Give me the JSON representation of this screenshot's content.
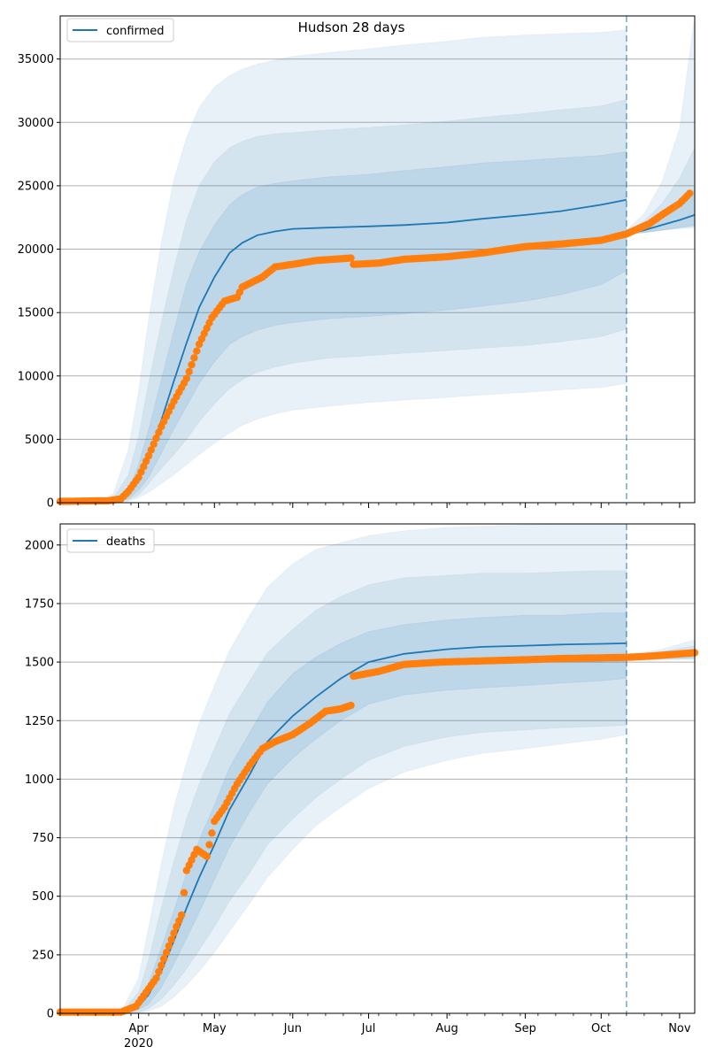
{
  "figure_title": "Hudson 28 days",
  "chart_data": [
    {
      "type": "line",
      "title": "Hudson 28 days",
      "legend": {
        "label": "confirmed",
        "placement": "top-left"
      },
      "grid": true,
      "ylim": [
        0,
        38400
      ],
      "yticks": [
        0,
        5000,
        10000,
        15000,
        20000,
        25000,
        30000,
        35000
      ],
      "xlim": [
        "2020-03-01",
        "2020-11-07"
      ],
      "vline_date": "2020-10-11",
      "forecast": {
        "x": [
          "2020-03-01",
          "2020-03-15",
          "2020-03-22",
          "2020-03-28",
          "2020-04-01",
          "2020-04-05",
          "2020-04-10",
          "2020-04-15",
          "2020-04-20",
          "2020-04-25",
          "2020-05-01",
          "2020-05-07",
          "2020-05-12",
          "2020-05-18",
          "2020-05-25",
          "2020-06-01",
          "2020-06-15",
          "2020-07-01",
          "2020-07-15",
          "2020-08-01",
          "2020-08-15",
          "2020-09-01",
          "2020-09-15",
          "2020-10-01",
          "2020-10-11"
        ],
        "median": [
          0,
          0,
          100,
          600,
          1800,
          3500,
          6500,
          9600,
          12600,
          15400,
          17800,
          19700,
          20500,
          21100,
          21400,
          21600,
          21700,
          21800,
          21900,
          22100,
          22400,
          22700,
          23000,
          23500,
          23900
        ],
        "band_inner": [
          [
            0,
            0
          ],
          [
            0,
            0
          ],
          [
            50,
            180
          ],
          [
            300,
            1000
          ],
          [
            1000,
            3000
          ],
          [
            2000,
            5800
          ],
          [
            3900,
            9700
          ],
          [
            5800,
            13600
          ],
          [
            7600,
            17300
          ],
          [
            9400,
            19800
          ],
          [
            11100,
            21900
          ],
          [
            12500,
            23500
          ],
          [
            13100,
            24300
          ],
          [
            13600,
            24900
          ],
          [
            14000,
            25200
          ],
          [
            14200,
            25400
          ],
          [
            14500,
            25700
          ],
          [
            14700,
            25900
          ],
          [
            14900,
            26200
          ],
          [
            15200,
            26500
          ],
          [
            15500,
            26800
          ],
          [
            15900,
            27000
          ],
          [
            16400,
            27200
          ],
          [
            17200,
            27400
          ],
          [
            18300,
            27700
          ]
        ],
        "band_mid": [
          [
            0,
            0
          ],
          [
            0,
            0
          ],
          [
            30,
            350
          ],
          [
            200,
            2200
          ],
          [
            600,
            5200
          ],
          [
            1500,
            9500
          ],
          [
            2700,
            14200
          ],
          [
            3800,
            18500
          ],
          [
            5000,
            22300
          ],
          [
            6400,
            25000
          ],
          [
            7800,
            26900
          ],
          [
            9000,
            28000
          ],
          [
            9700,
            28500
          ],
          [
            10300,
            28900
          ],
          [
            10700,
            29100
          ],
          [
            11000,
            29200
          ],
          [
            11400,
            29400
          ],
          [
            11600,
            29600
          ],
          [
            11800,
            29800
          ],
          [
            12000,
            30100
          ],
          [
            12200,
            30400
          ],
          [
            12400,
            30700
          ],
          [
            12700,
            31000
          ],
          [
            13100,
            31300
          ],
          [
            13700,
            31800
          ]
        ],
        "band_outer": [
          [
            0,
            0
          ],
          [
            0,
            30
          ],
          [
            20,
            700
          ],
          [
            100,
            4200
          ],
          [
            400,
            8800
          ],
          [
            800,
            14500
          ],
          [
            1500,
            20500
          ],
          [
            2200,
            25500
          ],
          [
            3000,
            28800
          ],
          [
            3800,
            31200
          ],
          [
            4700,
            32800
          ],
          [
            5500,
            33700
          ],
          [
            6100,
            34200
          ],
          [
            6600,
            34600
          ],
          [
            7000,
            34900
          ],
          [
            7300,
            35200
          ],
          [
            7600,
            35500
          ],
          [
            7900,
            35800
          ],
          [
            8100,
            36100
          ],
          [
            8300,
            36400
          ],
          [
            8500,
            36700
          ],
          [
            8700,
            36900
          ],
          [
            8900,
            37000
          ],
          [
            9100,
            37100
          ],
          [
            9400,
            37300
          ]
        ]
      },
      "projection": {
        "x": [
          "2020-10-11",
          "2020-10-18",
          "2020-10-25",
          "2020-11-01",
          "2020-11-07"
        ],
        "median": [
          21200,
          21500,
          21900,
          22300,
          22700
        ],
        "band_inner": [
          [
            21200,
            21300
          ],
          [
            21300,
            21800
          ],
          [
            21500,
            22500
          ],
          [
            21700,
            23500
          ],
          [
            21900,
            24700
          ]
        ],
        "band_mid": [
          [
            21200,
            21400
          ],
          [
            21300,
            22200
          ],
          [
            21500,
            23600
          ],
          [
            21700,
            25600
          ],
          [
            21800,
            28000
          ]
        ],
        "band_outer": [
          [
            21200,
            21500
          ],
          [
            21300,
            22800
          ],
          [
            21500,
            25300
          ],
          [
            21600,
            29500
          ],
          [
            21700,
            38400
          ]
        ]
      },
      "observed": {
        "x": [
          "2020-03-01",
          "2020-03-20",
          "2020-03-25",
          "2020-03-28",
          "2020-04-01",
          "2020-04-05",
          "2020-04-10",
          "2020-04-15",
          "2020-04-20",
          "2020-04-25",
          "2020-04-30",
          "2020-05-05",
          "2020-05-10",
          "2020-05-12",
          "2020-05-20",
          "2020-05-25",
          "2020-06-01",
          "2020-06-10",
          "2020-06-24",
          "2020-06-25",
          "2020-07-05",
          "2020-07-15",
          "2020-08-01",
          "2020-08-15",
          "2020-09-01",
          "2020-09-15",
          "2020-10-01",
          "2020-10-11",
          "2020-10-20",
          "2020-10-25",
          "2020-11-01",
          "2020-11-05"
        ],
        "values": [
          100,
          150,
          300,
          900,
          2000,
          3700,
          6000,
          8000,
          9800,
          12500,
          14600,
          15900,
          16200,
          17000,
          17800,
          18600,
          18800,
          19100,
          19300,
          18800,
          18900,
          19200,
          19400,
          19700,
          20200,
          20400,
          20700,
          21200,
          22000,
          22700,
          23600,
          24400
        ]
      }
    },
    {
      "type": "line",
      "legend": {
        "label": "deaths",
        "placement": "top-left"
      },
      "grid": true,
      "ylim": [
        0,
        2090
      ],
      "yticks": [
        0,
        250,
        500,
        750,
        1000,
        1250,
        1500,
        1750,
        2000
      ],
      "xlim": [
        "2020-03-01",
        "2020-11-07"
      ],
      "xticks": [
        {
          "date": "2020-04-01",
          "label": "Apr",
          "sublabel": "2020"
        },
        {
          "date": "2020-05-01",
          "label": "May"
        },
        {
          "date": "2020-06-01",
          "label": "Jun"
        },
        {
          "date": "2020-07-01",
          "label": "Jul"
        },
        {
          "date": "2020-08-01",
          "label": "Aug"
        },
        {
          "date": "2020-09-01",
          "label": "Sep"
        },
        {
          "date": "2020-10-01",
          "label": "Oct"
        },
        {
          "date": "2020-11-01",
          "label": "Nov"
        }
      ],
      "vline_date": "2020-10-11",
      "forecast": {
        "x": [
          "2020-03-01",
          "2020-03-25",
          "2020-04-01",
          "2020-04-05",
          "2020-04-10",
          "2020-04-15",
          "2020-04-20",
          "2020-04-25",
          "2020-05-01",
          "2020-05-07",
          "2020-05-15",
          "2020-05-22",
          "2020-06-01",
          "2020-06-10",
          "2020-06-20",
          "2020-07-01",
          "2020-07-15",
          "2020-08-01",
          "2020-08-15",
          "2020-09-01",
          "2020-09-15",
          "2020-10-01",
          "2020-10-11"
        ],
        "median": [
          0,
          0,
          30,
          80,
          180,
          310,
          450,
          580,
          720,
          870,
          1020,
          1160,
          1270,
          1350,
          1430,
          1500,
          1535,
          1555,
          1565,
          1570,
          1575,
          1578,
          1580
        ],
        "band_inner": [
          [
            0,
            0
          ],
          [
            0,
            0
          ],
          [
            15,
            50
          ],
          [
            40,
            130
          ],
          [
            110,
            280
          ],
          [
            210,
            440
          ],
          [
            320,
            600
          ],
          [
            430,
            740
          ],
          [
            570,
            890
          ],
          [
            710,
            1050
          ],
          [
            860,
            1200
          ],
          [
            980,
            1330
          ],
          [
            1090,
            1450
          ],
          [
            1170,
            1520
          ],
          [
            1250,
            1580
          ],
          [
            1320,
            1630
          ],
          [
            1360,
            1660
          ],
          [
            1380,
            1680
          ],
          [
            1390,
            1690
          ],
          [
            1400,
            1700
          ],
          [
            1410,
            1700
          ],
          [
            1420,
            1710
          ],
          [
            1430,
            1710
          ]
        ],
        "band_mid": [
          [
            0,
            0
          ],
          [
            0,
            0
          ],
          [
            5,
            90
          ],
          [
            20,
            230
          ],
          [
            60,
            450
          ],
          [
            120,
            650
          ],
          [
            190,
            830
          ],
          [
            270,
            980
          ],
          [
            370,
            1130
          ],
          [
            480,
            1280
          ],
          [
            600,
            1420
          ],
          [
            720,
            1540
          ],
          [
            830,
            1640
          ],
          [
            920,
            1720
          ],
          [
            1000,
            1780
          ],
          [
            1080,
            1830
          ],
          [
            1140,
            1860
          ],
          [
            1180,
            1870
          ],
          [
            1200,
            1880
          ],
          [
            1210,
            1880
          ],
          [
            1220,
            1885
          ],
          [
            1225,
            1890
          ],
          [
            1230,
            1890
          ]
        ],
        "band_outer": [
          [
            0,
            0
          ],
          [
            0,
            5
          ],
          [
            2,
            150
          ],
          [
            10,
            370
          ],
          [
            30,
            640
          ],
          [
            70,
            880
          ],
          [
            120,
            1070
          ],
          [
            180,
            1240
          ],
          [
            260,
            1400
          ],
          [
            350,
            1550
          ],
          [
            470,
            1700
          ],
          [
            580,
            1820
          ],
          [
            700,
            1920
          ],
          [
            800,
            1980
          ],
          [
            880,
            2010
          ],
          [
            960,
            2040
          ],
          [
            1030,
            2060
          ],
          [
            1080,
            2075
          ],
          [
            1110,
            2080
          ],
          [
            1130,
            2085
          ],
          [
            1150,
            2090
          ],
          [
            1170,
            2090
          ],
          [
            1190,
            2090
          ]
        ]
      },
      "projection": {
        "x": [
          "2020-10-11",
          "2020-10-25",
          "2020-11-07"
        ],
        "median": [
          1520,
          1525,
          1535
        ],
        "band_inner": [
          [
            1515,
            1525
          ],
          [
            1515,
            1535
          ],
          [
            1520,
            1550
          ]
        ],
        "band_mid": [
          [
            1512,
            1528
          ],
          [
            1512,
            1545
          ],
          [
            1515,
            1570
          ]
        ],
        "band_outer": [
          [
            1510,
            1530
          ],
          [
            1510,
            1555
          ],
          [
            1512,
            1595
          ]
        ]
      },
      "observed": {
        "x": [
          "2020-03-01",
          "2020-03-25",
          "2020-03-31",
          "2020-04-04",
          "2020-04-08",
          "2020-04-12",
          "2020-04-16",
          "2020-04-18",
          "2020-04-20",
          "2020-04-24",
          "2020-04-28",
          "2020-05-01",
          "2020-05-05",
          "2020-05-10",
          "2020-05-15",
          "2020-05-20",
          "2020-05-25",
          "2020-06-01",
          "2020-06-08",
          "2020-06-14",
          "2020-06-20",
          "2020-06-24",
          "2020-06-25",
          "2020-07-05",
          "2020-07-15",
          "2020-07-30",
          "2020-08-15",
          "2020-09-01",
          "2020-09-15",
          "2020-10-01",
          "2020-10-11",
          "2020-10-20",
          "2020-11-01",
          "2020-11-07"
        ],
        "values": [
          5,
          5,
          30,
          90,
          150,
          260,
          370,
          420,
          610,
          700,
          670,
          820,
          880,
          980,
          1060,
          1130,
          1160,
          1190,
          1240,
          1290,
          1300,
          1315,
          1440,
          1460,
          1490,
          1500,
          1505,
          1510,
          1515,
          1518,
          1520,
          1525,
          1535,
          1540
        ]
      }
    }
  ],
  "colors": {
    "median_line": "#1f77b4",
    "observed_points": "#ff7f0e",
    "band_fill": "#1f77b4",
    "vline": "#1f77b4",
    "grid": "#b0b0b0"
  }
}
